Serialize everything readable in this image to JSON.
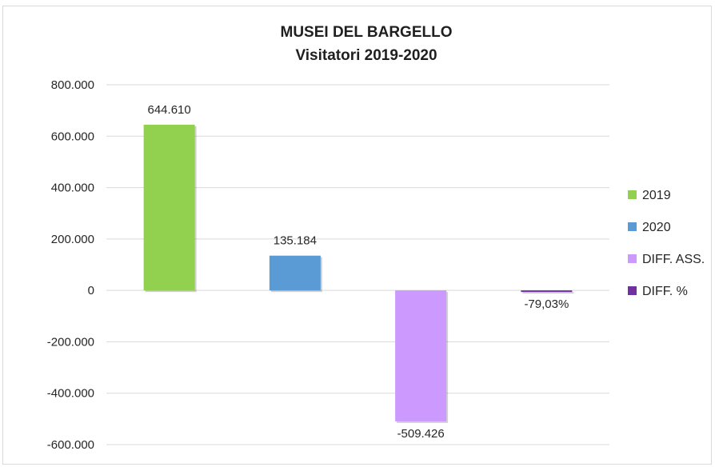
{
  "chart_data": {
    "type": "bar",
    "title": "MUSEI DEL BARGELLO",
    "subtitle": "Visitatori  2019-2020",
    "xlabel": "",
    "ylabel": "",
    "ylim": [
      -600000,
      800000
    ],
    "yticks": [
      800000,
      600000,
      400000,
      200000,
      0,
      -200000,
      -400000,
      -600000
    ],
    "ytick_labels": [
      "800.000",
      "600.000",
      "400.000",
      "200.000",
      "0",
      "-200.000",
      "-400.000",
      "-600.000"
    ],
    "grid": true,
    "legend_position": "right",
    "series": [
      {
        "name": "2019",
        "value": 644610,
        "label": "644.610",
        "color": "#92d050"
      },
      {
        "name": "2020",
        "value": 135184,
        "label": "135.184",
        "color": "#5b9bd5"
      },
      {
        "name": "DIFF. ASS.",
        "value": -509426,
        "label": "-509.426",
        "color": "#cc99ff"
      },
      {
        "name": "DIFF. %",
        "value": -0.7903,
        "label": "-79,03%",
        "color": "#7030a0"
      }
    ]
  }
}
